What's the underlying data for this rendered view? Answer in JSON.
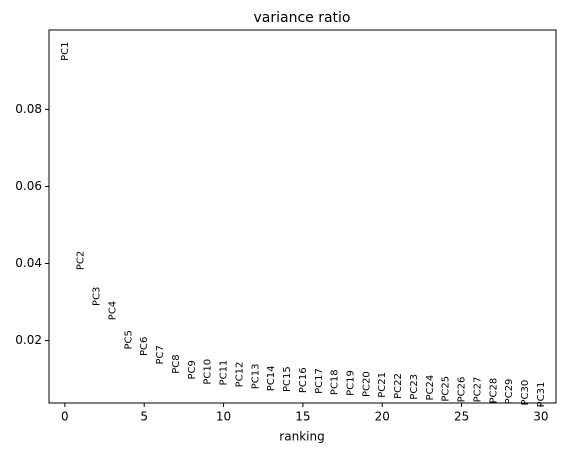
{
  "chart_data": {
    "type": "text-scatter",
    "title": "variance ratio",
    "x_label": "ranking",
    "x": [
      0,
      1,
      2,
      3,
      4,
      5,
      6,
      7,
      8,
      9,
      10,
      11,
      12,
      13,
      14,
      15,
      16,
      17,
      18,
      19,
      20,
      21,
      22,
      23,
      24,
      25,
      26,
      27,
      28,
      29,
      30
    ],
    "labels": [
      "PC1",
      "PC2",
      "PC3",
      "PC4",
      "PC5",
      "PC6",
      "PC7",
      "PC8",
      "PC9",
      "PC10",
      "PC11",
      "PC12",
      "PC13",
      "PC14",
      "PC15",
      "PC16",
      "PC17",
      "PC18",
      "PC19",
      "PC20",
      "PC21",
      "PC22",
      "PC23",
      "PC24",
      "PC25",
      "PC26",
      "PC27",
      "PC28",
      "PC29",
      "PC30",
      "PC31"
    ],
    "values": [
      0.0951,
      0.0408,
      0.0315,
      0.0278,
      0.0202,
      0.0185,
      0.0163,
      0.0139,
      0.0124,
      0.0119,
      0.0117,
      0.0112,
      0.0107,
      0.0102,
      0.01,
      0.0097,
      0.0095,
      0.0092,
      0.009,
      0.0087,
      0.0085,
      0.0082,
      0.008,
      0.0078,
      0.0075,
      0.0073,
      0.0073,
      0.007,
      0.0068,
      0.0065,
      0.006
    ],
    "color": "#000000",
    "xlim": [
      -1.0,
      30.95
    ],
    "ylim": [
      0.0038,
      0.1006
    ],
    "xticks": [
      0,
      5,
      10,
      15,
      20,
      25,
      30
    ],
    "yticks": [
      0.02,
      0.04,
      0.06,
      0.08
    ],
    "grid": false
  }
}
